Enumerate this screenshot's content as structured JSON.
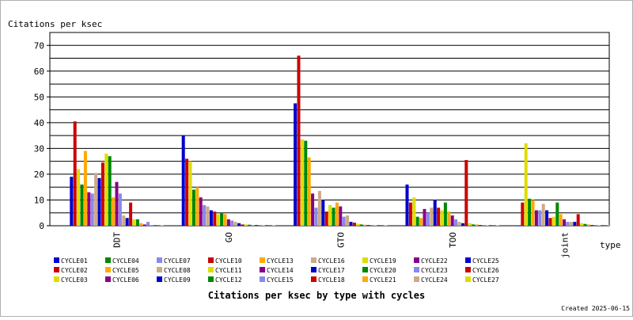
{
  "chart_data": {
    "type": "bar",
    "title": "Citations per ksec by type with cycles",
    "ylabel": "Citations per ksec",
    "xlabel": "type",
    "ylim": [
      0,
      75
    ],
    "yticks": [
      0,
      10,
      20,
      30,
      40,
      50,
      60,
      70
    ],
    "grid": true,
    "legend_position": "bottom",
    "categories": [
      "DDT",
      "GO",
      "GTO",
      "TOO",
      "joint"
    ],
    "series": [
      {
        "name": "CYCLE01",
        "color": "#0000cc",
        "values": [
          19,
          35,
          47.5,
          16,
          0
        ]
      },
      {
        "name": "CYCLE02",
        "color": "#cc0000",
        "values": [
          40.5,
          26,
          66,
          9,
          9
        ]
      },
      {
        "name": "CYCLE03",
        "color": "#dddd00",
        "values": [
          22,
          25,
          33.5,
          11,
          32
        ]
      },
      {
        "name": "CYCLE04",
        "color": "#008800",
        "values": [
          16,
          14,
          33,
          3.5,
          10.5
        ]
      },
      {
        "name": "CYCLE05",
        "color": "#ffaa00",
        "values": [
          29,
          15,
          26.5,
          3,
          10
        ]
      },
      {
        "name": "CYCLE06",
        "color": "#880088",
        "values": [
          13,
          11,
          12.5,
          6.5,
          6
        ]
      },
      {
        "name": "CYCLE07",
        "color": "#8888ee",
        "values": [
          12.5,
          8,
          7,
          5,
          6
        ]
      },
      {
        "name": "CYCLE08",
        "color": "#ccaa88",
        "values": [
          20.5,
          7.5,
          13.5,
          7,
          8.5
        ]
      },
      {
        "name": "CYCLE09",
        "color": "#0000cc",
        "values": [
          18.5,
          6,
          10,
          10,
          6
        ]
      },
      {
        "name": "CYCLE10",
        "color": "#cc0000",
        "values": [
          24.5,
          5.5,
          5.5,
          7,
          3
        ]
      },
      {
        "name": "CYCLE11",
        "color": "#dddd00",
        "values": [
          28,
          4.5,
          8,
          6,
          3.5
        ]
      },
      {
        "name": "CYCLE12",
        "color": "#008800",
        "values": [
          27,
          5,
          7,
          9,
          9
        ]
      },
      {
        "name": "CYCLE13",
        "color": "#ffaa00",
        "values": [
          11,
          4.5,
          9,
          5.5,
          4.5
        ]
      },
      {
        "name": "CYCLE14",
        "color": "#880088",
        "values": [
          17,
          2.5,
          7.5,
          4,
          2.5
        ]
      },
      {
        "name": "CYCLE15",
        "color": "#8888ee",
        "values": [
          12.5,
          2,
          3.5,
          2.5,
          1.5
        ]
      },
      {
        "name": "CYCLE16",
        "color": "#ccaa88",
        "values": [
          4,
          1.5,
          4,
          1.5,
          1.5
        ]
      },
      {
        "name": "CYCLE17",
        "color": "#0000cc",
        "values": [
          3,
          1,
          1.5,
          1,
          1.5
        ]
      },
      {
        "name": "CYCLE18",
        "color": "#cc0000",
        "values": [
          9,
          0.5,
          1.2,
          25.5,
          4.5
        ]
      },
      {
        "name": "CYCLE19",
        "color": "#dddd00",
        "values": [
          2.5,
          0.5,
          0.8,
          1,
          1
        ]
      },
      {
        "name": "CYCLE20",
        "color": "#008800",
        "values": [
          2.5,
          0.4,
          0.5,
          0.5,
          0.7
        ]
      },
      {
        "name": "CYCLE21",
        "color": "#ffaa00",
        "values": [
          1,
          0.3,
          0.4,
          0.5,
          0.5
        ]
      },
      {
        "name": "CYCLE22",
        "color": "#880088",
        "values": [
          0.5,
          0.3,
          0.3,
          0.3,
          0.3
        ]
      },
      {
        "name": "CYCLE23",
        "color": "#8888ee",
        "values": [
          1.5,
          0.3,
          0.3,
          0.3,
          0.3
        ]
      },
      {
        "name": "CYCLE24",
        "color": "#ccaa88",
        "values": [
          0.3,
          0.2,
          0.2,
          0.2,
          0.2
        ]
      },
      {
        "name": "CYCLE25",
        "color": "#0000cc",
        "values": [
          0.2,
          0.2,
          0.2,
          0.2,
          0.2
        ]
      },
      {
        "name": "CYCLE26",
        "color": "#cc0000",
        "values": [
          0.2,
          0.2,
          0.2,
          0.2,
          0.2
        ]
      },
      {
        "name": "CYCLE27",
        "color": "#dddd00",
        "values": [
          0.2,
          0.2,
          0.2,
          0.2,
          0.2
        ]
      }
    ]
  },
  "footer": {
    "created_text": "Created 2025-06-15"
  }
}
